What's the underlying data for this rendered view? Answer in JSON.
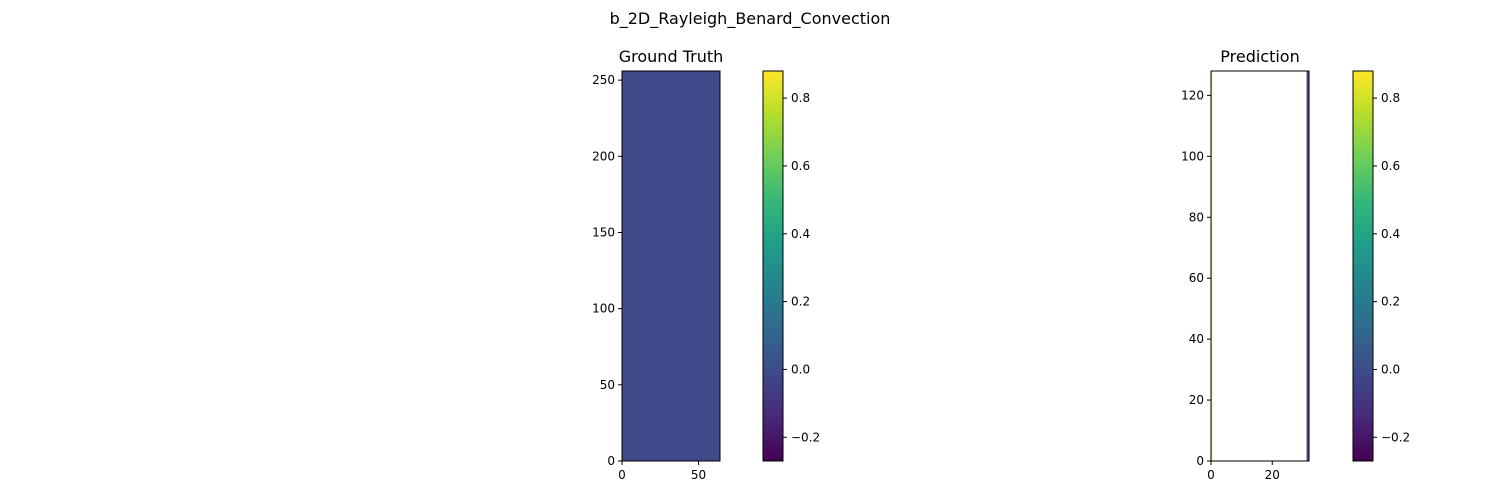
{
  "figure": {
    "suptitle": "b_2D_Rayleigh_Benard_Convection"
  },
  "colormap": {
    "name": "viridis",
    "stops": [
      "#440154",
      "#482878",
      "#3e4989",
      "#31688e",
      "#26828e",
      "#1f9e89",
      "#35b779",
      "#6ece58",
      "#b5de2b",
      "#fde725"
    ]
  },
  "chart_data": [
    {
      "type": "heatmap",
      "title": "Ground Truth",
      "xlim": [
        0,
        64
      ],
      "ylim": [
        0,
        256
      ],
      "x_ticks": [
        0,
        50
      ],
      "y_ticks": [
        0,
        50,
        100,
        150,
        200,
        250
      ],
      "fill_value": 0.0,
      "fill_color": "#3e4a89",
      "strips": [],
      "colorbar": {
        "vmin": -0.27,
        "vmax": 0.88,
        "ticks": [
          -0.2,
          0.0,
          0.2,
          0.4,
          0.6,
          0.8
        ]
      }
    },
    {
      "type": "heatmap",
      "title": "Prediction",
      "xlim": [
        0,
        32
      ],
      "ylim": [
        0,
        128
      ],
      "x_ticks": [
        0,
        20
      ],
      "y_ticks": [
        0,
        20,
        40,
        60,
        80,
        100,
        120
      ],
      "fill_value": null,
      "fill_color": "#ffffff",
      "strips": [
        {
          "x0": 0,
          "x1": 0.4,
          "value": 0.88,
          "color": "#fde725"
        },
        {
          "x0": 31.2,
          "x1": 32,
          "value": 0.0,
          "color": "#3e4a89"
        }
      ],
      "colorbar": {
        "vmin": -0.27,
        "vmax": 0.88,
        "ticks": [
          -0.2,
          0.0,
          0.2,
          0.4,
          0.6,
          0.8
        ]
      }
    }
  ]
}
